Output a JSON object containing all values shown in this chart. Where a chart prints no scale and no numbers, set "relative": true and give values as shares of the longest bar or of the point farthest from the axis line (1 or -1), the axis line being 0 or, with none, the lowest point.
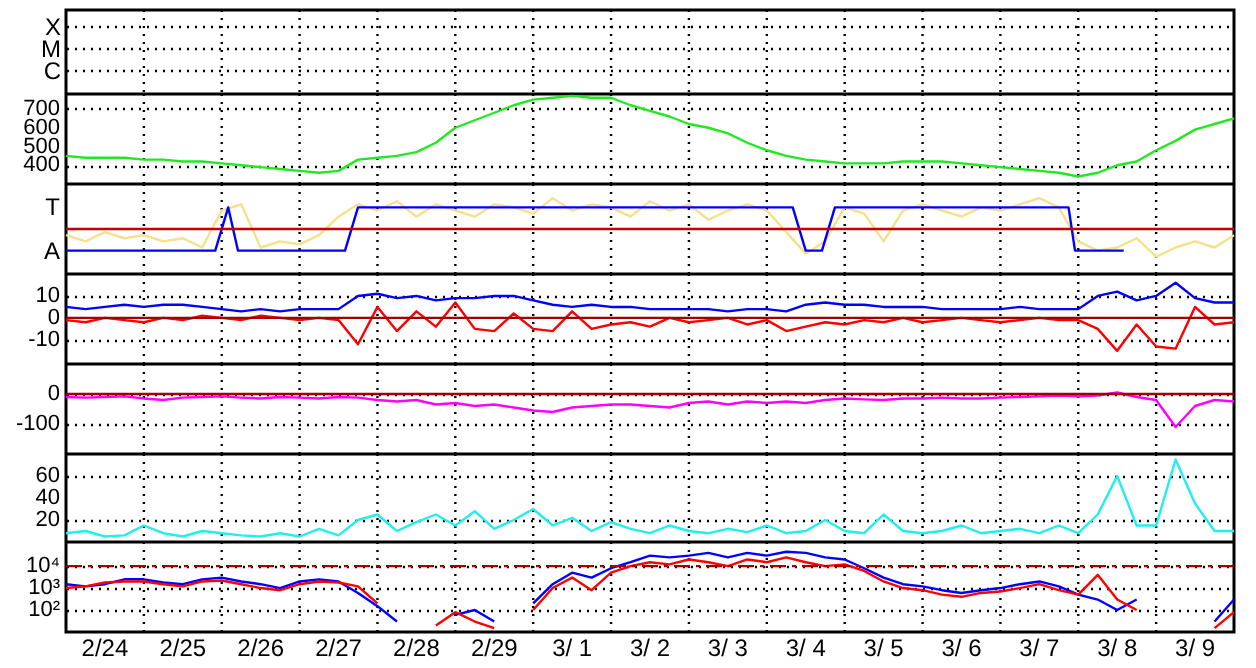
{
  "chart_data": [
    {
      "type": "other",
      "annotations": [
        "X",
        "M",
        "C"
      ]
    },
    {
      "type": "line",
      "x": [
        "--02-24T00:00",
        "--02-24T06:00",
        "--02-24T12:00",
        "--02-24T18:00",
        "--02-25T00:00",
        "--02-25T06:00",
        "--02-25T12:00",
        "--02-25T18:00",
        "--02-26T00:00",
        "--02-26T06:00",
        "--02-26T12:00",
        "--02-26T18:00",
        "--02-27T00:00",
        "--02-27T06:00",
        "--02-27T12:00",
        "--02-27T18:00",
        "--02-28T00:00",
        "--02-28T06:00",
        "--02-28T12:00",
        "--02-28T18:00",
        "--02-29T00:00",
        "--02-29T06:00",
        "--02-29T12:00",
        "--02-29T18:00",
        "--03-01T00:00",
        "--03-01T06:00",
        "--03-01T12:00",
        "--03-01T18:00",
        "--03-02T00:00",
        "--03-02T06:00",
        "--03-02T12:00",
        "--03-02T18:00",
        "--03-03T00:00",
        "--03-03T06:00",
        "--03-03T12:00",
        "--03-03T18:00",
        "--03-04T00:00",
        "--03-04T06:00",
        "--03-04T12:00",
        "--03-04T18:00",
        "--03-05T00:00",
        "--03-05T06:00",
        "--03-05T12:00",
        "--03-05T18:00",
        "--03-06T00:00",
        "--03-06T06:00",
        "--03-06T12:00",
        "--03-06T18:00",
        "--03-07T00:00",
        "--03-07T06:00",
        "--03-07T12:00",
        "--03-07T18:00",
        "--03-08T00:00",
        "--03-08T06:00",
        "--03-08T12:00",
        "--03-08T18:00",
        "--03-09T00:00",
        "--03-09T06:00",
        "--03-09T12:00",
        "--03-09T18:00",
        "--03-10T00:00"
      ],
      "series": [
        {
          "color": "#22e822",
          "values": [
            450,
            440,
            440,
            440,
            430,
            430,
            420,
            420,
            410,
            400,
            390,
            380,
            370,
            360,
            370,
            430,
            440,
            450,
            470,
            520,
            600,
            640,
            680,
            720,
            750,
            760,
            770,
            760,
            760,
            720,
            690,
            660,
            620,
            600,
            570,
            520,
            480,
            450,
            430,
            420,
            410,
            410,
            410,
            420,
            420,
            420,
            410,
            400,
            390,
            380,
            370,
            360,
            340,
            360,
            400,
            420,
            480,
            530,
            590,
            620,
            650
          ]
        }
      ],
      "xlim": [
        "--02-24",
        "--03-10"
      ],
      "xticks": [
        {
          "value": "--02-24T12:00",
          "label": "2/24"
        },
        {
          "value": "--02-25",
          "label": null
        },
        {
          "value": "--02-25T12:00",
          "label": "2/25"
        },
        {
          "value": "--02-26",
          "label": null
        },
        {
          "value": "--02-26T12:00",
          "label": "2/26"
        },
        {
          "value": "--02-27",
          "label": null
        },
        {
          "value": "--02-27T12:00",
          "label": "2/27"
        },
        {
          "value": "--02-28",
          "label": null
        },
        {
          "value": "--02-28T12:00",
          "label": "2/28"
        },
        {
          "value": "--02-29",
          "label": null
        },
        {
          "value": "--02-29T12:00",
          "label": "2/29"
        },
        {
          "value": "--03-01",
          "label": null
        },
        {
          "value": "--03-01T12:00",
          "label": "3/ 1"
        },
        {
          "value": "--03-02",
          "label": null
        },
        {
          "value": "--03-02T12:00",
          "label": "3/ 2"
        },
        {
          "value": "--03-03",
          "label": null
        },
        {
          "value": "--03-03T12:00",
          "label": "3/ 3"
        },
        {
          "value": "--03-04",
          "label": null
        },
        {
          "value": "--03-04T12:00",
          "label": "3/ 4"
        },
        {
          "value": "--03-05",
          "label": null
        },
        {
          "value": "--03-05T12:00",
          "label": "3/ 5"
        },
        {
          "value": "--03-06",
          "label": null
        },
        {
          "value": "--03-06T12:00",
          "label": "3/ 6"
        },
        {
          "value": "--03-07",
          "label": null
        },
        {
          "value": "--03-07T12:00",
          "label": "3/ 7"
        },
        {
          "value": "--03-08",
          "label": null
        },
        {
          "value": "--03-08T12:00",
          "label": "3/ 8"
        },
        {
          "value": "--03-09",
          "label": null
        },
        {
          "value": "--03-09T12:00",
          "label": "3/ 9"
        }
      ],
      "ylim": [
        300,
        780
      ],
      "yticks": [
        400,
        500,
        600,
        700
      ],
      "grid": true,
      "tick_labels": "y"
    },
    {
      "type": "line",
      "x": [
        "--02-24T00:00",
        "--02-24T06:00",
        "--02-24T12:00",
        "--02-24T18:00",
        "--02-25T00:00",
        "--02-25T06:00",
        "--02-25T12:00",
        "--02-25T18:00",
        "--02-26T00:00",
        "--02-26T06:00",
        "--02-26T12:00",
        "--02-26T18:00",
        "--02-27T00:00",
        "--02-27T06:00",
        "--02-27T12:00",
        "--02-27T18:00",
        "--02-28T00:00",
        "--02-28T06:00",
        "--02-28T12:00",
        "--02-28T18:00",
        "--02-29T00:00",
        "--02-29T06:00",
        "--02-29T12:00",
        "--02-29T18:00",
        "--03-01T00:00",
        "--03-01T06:00",
        "--03-01T12:00",
        "--03-01T18:00",
        "--03-02T00:00",
        "--03-02T06:00",
        "--03-02T12:00",
        "--03-02T18:00",
        "--03-03T00:00",
        "--03-03T06:00",
        "--03-03T12:00",
        "--03-03T18:00",
        "--03-04T00:00",
        "--03-04T06:00",
        "--03-04T12:00",
        "--03-04T18:00",
        "--03-05T00:00",
        "--03-05T06:00",
        "--03-05T12:00",
        "--03-05T18:00",
        "--03-06T00:00",
        "--03-06T06:00",
        "--03-06T12:00",
        "--03-06T18:00",
        "--03-07T00:00",
        "--03-07T06:00",
        "--03-07T12:00",
        "--03-07T18:00",
        "--03-08T00:00",
        "--03-08T06:00",
        "--03-08T12:00",
        "--03-08T18:00",
        "--03-09T00:00",
        "--03-09T06:00",
        "--03-09T12:00",
        "--03-09T18:00",
        "--03-10T00:00"
      ],
      "series": [
        {
          "color": "#f5e08c",
          "values": [
            -0.2,
            -0.4,
            -0.1,
            -0.3,
            -0.2,
            -0.4,
            -0.3,
            -0.6,
            0.6,
            0.8,
            -0.6,
            -0.4,
            -0.5,
            -0.2,
            0.4,
            0.8,
            0.6,
            0.9,
            0.4,
            0.8,
            0.6,
            0.4,
            0.8,
            0.7,
            0.5,
            1,
            0.6,
            0.8,
            0.7,
            0.4,
            0.9,
            0.6,
            0.8,
            0.3,
            0.6,
            0.8,
            0.6,
            -0.1,
            -0.8,
            -0.4,
            0.7,
            0.5,
            -0.4,
            0.6,
            0.8,
            0.6,
            0.4,
            0.7,
            0.6,
            0.8,
            1,
            0.7,
            -0.4,
            -0.7,
            -0.6,
            -0.3,
            -0.9,
            -0.6,
            -0.4,
            -0.6,
            -0.2
          ]
        },
        {
          "color": "#0000ff",
          "x": [
            "--02-24T00:00",
            "--02-25T22:00",
            "--02-26T02:00",
            "--02-26T05:00",
            "--02-27T14:00",
            "--02-27T18:00",
            "--03-04T08:00",
            "--03-04T12:00",
            "--03-04T17:00",
            "--03-04T21:00",
            "--03-07T21:00",
            "--03-07T23:00",
            "--03-08T14:00"
          ],
          "values": [
            -0.7,
            -0.7,
            0.7,
            -0.7,
            -0.7,
            0.7,
            0.7,
            -0.7,
            -0.7,
            0.7,
            0.7,
            -0.7,
            -0.7
          ]
        }
      ],
      "relative": true,
      "annotations": [
        "T",
        "A"
      ],
      "ref_lines": [
        {
          "axis": "y",
          "value": 0,
          "color": "#c00000"
        }
      ],
      "xlim": [
        "--02-24",
        "--03-10"
      ],
      "xticks": [
        {
          "value": "--02-24T12:00",
          "label": "2/24"
        },
        {
          "value": "--02-25",
          "label": null
        },
        {
          "value": "--02-25T12:00",
          "label": "2/25"
        },
        {
          "value": "--02-26",
          "label": null
        },
        {
          "value": "--02-26T12:00",
          "label": "2/26"
        },
        {
          "value": "--02-27",
          "label": null
        },
        {
          "value": "--02-27T12:00",
          "label": "2/27"
        },
        {
          "value": "--02-28",
          "label": null
        },
        {
          "value": "--02-28T12:00",
          "label": "2/28"
        },
        {
          "value": "--02-29",
          "label": null
        },
        {
          "value": "--02-29T12:00",
          "label": "2/29"
        },
        {
          "value": "--03-01",
          "label": null
        },
        {
          "value": "--03-01T12:00",
          "label": "3/ 1"
        },
        {
          "value": "--03-02",
          "label": null
        },
        {
          "value": "--03-02T12:00",
          "label": "3/ 2"
        },
        {
          "value": "--03-03",
          "label": null
        },
        {
          "value": "--03-03T12:00",
          "label": "3/ 3"
        },
        {
          "value": "--03-04",
          "label": null
        },
        {
          "value": "--03-04T12:00",
          "label": "3/ 4"
        },
        {
          "value": "--03-05",
          "label": null
        },
        {
          "value": "--03-05T12:00",
          "label": "3/ 5"
        },
        {
          "value": "--03-06",
          "label": null
        },
        {
          "value": "--03-06T12:00",
          "label": "3/ 6"
        },
        {
          "value": "--03-07",
          "label": null
        },
        {
          "value": "--03-07T12:00",
          "label": "3/ 7"
        },
        {
          "value": "--03-08",
          "label": null
        },
        {
          "value": "--03-08T12:00",
          "label": "3/ 8"
        },
        {
          "value": "--03-09",
          "label": null
        },
        {
          "value": "--03-09T12:00",
          "label": "3/ 9"
        }
      ],
      "grid": "x",
      "tick_labels": false
    },
    {
      "type": "line",
      "x": [
        "--02-24T00:00",
        "--02-24T06:00",
        "--02-24T12:00",
        "--02-24T18:00",
        "--02-25T00:00",
        "--02-25T06:00",
        "--02-25T12:00",
        "--02-25T18:00",
        "--02-26T00:00",
        "--02-26T06:00",
        "--02-26T12:00",
        "--02-26T18:00",
        "--02-27T00:00",
        "--02-27T06:00",
        "--02-27T12:00",
        "--02-27T18:00",
        "--02-28T00:00",
        "--02-28T06:00",
        "--02-28T12:00",
        "--02-28T18:00",
        "--02-29T00:00",
        "--02-29T06:00",
        "--02-29T12:00",
        "--02-29T18:00",
        "--03-01T00:00",
        "--03-01T06:00",
        "--03-01T12:00",
        "--03-01T18:00",
        "--03-02T00:00",
        "--03-02T06:00",
        "--03-02T12:00",
        "--03-02T18:00",
        "--03-03T00:00",
        "--03-03T06:00",
        "--03-03T12:00",
        "--03-03T18:00",
        "--03-04T00:00",
        "--03-04T06:00",
        "--03-04T12:00",
        "--03-04T18:00",
        "--03-05T00:00",
        "--03-05T06:00",
        "--03-05T12:00",
        "--03-05T18:00",
        "--03-06T00:00",
        "--03-06T06:00",
        "--03-06T12:00",
        "--03-06T18:00",
        "--03-07T00:00",
        "--03-07T06:00",
        "--03-07T12:00",
        "--03-07T18:00",
        "--03-08T00:00",
        "--03-08T06:00",
        "--03-08T12:00",
        "--03-08T18:00",
        "--03-09T00:00",
        "--03-09T06:00",
        "--03-09T12:00",
        "--03-09T18:00",
        "--03-10T00:00"
      ],
      "series": [
        {
          "color": "#0000ff",
          "values": [
            5,
            4,
            5,
            6,
            5,
            6,
            6,
            5,
            4,
            3,
            4,
            3,
            4,
            4,
            4,
            10,
            11,
            9,
            10,
            8,
            9,
            9,
            10,
            10,
            8,
            6,
            5,
            6,
            5,
            5,
            4,
            4,
            4,
            4,
            3,
            4,
            4,
            3,
            6,
            7,
            6,
            6,
            5,
            5,
            5,
            4,
            4,
            4,
            4,
            5,
            4,
            4,
            4,
            10,
            12,
            8,
            10,
            16,
            9,
            7,
            7
          ]
        },
        {
          "color": "#ff0000",
          "values": [
            -1,
            -2,
            0,
            -1,
            -2,
            0,
            -1,
            1,
            0,
            -1,
            1,
            0,
            -1,
            0,
            -1,
            -12,
            5,
            -6,
            3,
            -4,
            7,
            -5,
            -6,
            2,
            -5,
            -6,
            3,
            -5,
            -3,
            -2,
            -4,
            0,
            -2,
            -1,
            0,
            -3,
            -1,
            -6,
            -4,
            -2,
            -3,
            -1,
            -2,
            0,
            -2,
            -1,
            0,
            -1,
            -2,
            -1,
            0,
            -1,
            -1,
            -5,
            -15,
            -3,
            -13,
            -14,
            5,
            -3,
            -2
          ]
        }
      ],
      "ref_lines": [
        {
          "axis": "y",
          "value": 0,
          "color": "#a00000"
        }
      ],
      "xlim": [
        "--02-24",
        "--03-10"
      ],
      "xticks": [
        {
          "value": "--02-24T12:00",
          "label": "2/24"
        },
        {
          "value": "--02-25",
          "label": null
        },
        {
          "value": "--02-25T12:00",
          "label": "2/25"
        },
        {
          "value": "--02-26",
          "label": null
        },
        {
          "value": "--02-26T12:00",
          "label": "2/26"
        },
        {
          "value": "--02-27",
          "label": null
        },
        {
          "value": "--02-27T12:00",
          "label": "2/27"
        },
        {
          "value": "--02-28",
          "label": null
        },
        {
          "value": "--02-28T12:00",
          "label": "2/28"
        },
        {
          "value": "--02-29",
          "label": null
        },
        {
          "value": "--02-29T12:00",
          "label": "2/29"
        },
        {
          "value": "--03-01",
          "label": null
        },
        {
          "value": "--03-01T12:00",
          "label": "3/ 1"
        },
        {
          "value": "--03-02",
          "label": null
        },
        {
          "value": "--03-02T12:00",
          "label": "3/ 2"
        },
        {
          "value": "--03-03",
          "label": null
        },
        {
          "value": "--03-03T12:00",
          "label": "3/ 3"
        },
        {
          "value": "--03-04",
          "label": null
        },
        {
          "value": "--03-04T12:00",
          "label": "3/ 4"
        },
        {
          "value": "--03-05",
          "label": null
        },
        {
          "value": "--03-05T12:00",
          "label": "3/ 5"
        },
        {
          "value": "--03-06",
          "label": null
        },
        {
          "value": "--03-06T12:00",
          "label": "3/ 6"
        },
        {
          "value": "--03-07",
          "label": null
        },
        {
          "value": "--03-07T12:00",
          "label": "3/ 7"
        },
        {
          "value": "--03-08",
          "label": null
        },
        {
          "value": "--03-08T12:00",
          "label": "3/ 8"
        },
        {
          "value": "--03-09",
          "label": null
        },
        {
          "value": "--03-09T12:00",
          "label": "3/ 9"
        }
      ],
      "ylim": [
        -21,
        20
      ],
      "yticks": [
        -10,
        0,
        10
      ],
      "grid": true,
      "tick_labels": "y"
    },
    {
      "type": "line",
      "x": [
        "--02-24T00:00",
        "--02-24T06:00",
        "--02-24T12:00",
        "--02-24T18:00",
        "--02-25T00:00",
        "--02-25T06:00",
        "--02-25T12:00",
        "--02-25T18:00",
        "--02-26T00:00",
        "--02-26T06:00",
        "--02-26T12:00",
        "--02-26T18:00",
        "--02-27T00:00",
        "--02-27T06:00",
        "--02-27T12:00",
        "--02-27T18:00",
        "--02-28T00:00",
        "--02-28T06:00",
        "--02-28T12:00",
        "--02-28T18:00",
        "--02-29T00:00",
        "--02-29T06:00",
        "--02-29T12:00",
        "--02-29T18:00",
        "--03-01T00:00",
        "--03-01T06:00",
        "--03-01T12:00",
        "--03-01T18:00",
        "--03-02T00:00",
        "--03-02T06:00",
        "--03-02T12:00",
        "--03-02T18:00",
        "--03-03T00:00",
        "--03-03T06:00",
        "--03-03T12:00",
        "--03-03T18:00",
        "--03-04T00:00",
        "--03-04T06:00",
        "--03-04T12:00",
        "--03-04T18:00",
        "--03-05T00:00",
        "--03-05T06:00",
        "--03-05T12:00",
        "--03-05T18:00",
        "--03-06T00:00",
        "--03-06T06:00",
        "--03-06T12:00",
        "--03-06T18:00",
        "--03-07T00:00",
        "--03-07T06:00",
        "--03-07T12:00",
        "--03-07T18:00",
        "--03-08T00:00",
        "--03-08T06:00",
        "--03-08T12:00",
        "--03-08T18:00",
        "--03-09T00:00",
        "--03-09T06:00",
        "--03-09T12:00",
        "--03-09T18:00",
        "--03-10T00:00"
      ],
      "series": [
        {
          "color": "#ff00ff",
          "values": [
            -10,
            -12,
            -10,
            -8,
            -15,
            -20,
            -12,
            -10,
            -8,
            -12,
            -15,
            -10,
            -12,
            -15,
            -10,
            -12,
            -20,
            -25,
            -20,
            -35,
            -30,
            -40,
            -35,
            -45,
            -55,
            -60,
            -45,
            -40,
            -35,
            -35,
            -40,
            -45,
            -30,
            -25,
            -35,
            -25,
            -30,
            -25,
            -30,
            -20,
            -15,
            -18,
            -20,
            -15,
            -15,
            -12,
            -15,
            -15,
            -12,
            -10,
            -8,
            -5,
            -8,
            -5,
            5,
            -10,
            -20,
            -110,
            -40,
            -20,
            -25
          ]
        }
      ],
      "ref_lines": [
        {
          "axis": "y",
          "value": 0,
          "color": "#a00000"
        }
      ],
      "xlim": [
        "--02-24",
        "--03-10"
      ],
      "xticks": [
        {
          "value": "--02-24T12:00",
          "label": "2/24"
        },
        {
          "value": "--02-25",
          "label": null
        },
        {
          "value": "--02-25T12:00",
          "label": "2/25"
        },
        {
          "value": "--02-26",
          "label": null
        },
        {
          "value": "--02-26T12:00",
          "label": "2/26"
        },
        {
          "value": "--02-27",
          "label": null
        },
        {
          "value": "--02-27T12:00",
          "label": "2/27"
        },
        {
          "value": "--02-28",
          "label": null
        },
        {
          "value": "--02-28T12:00",
          "label": "2/28"
        },
        {
          "value": "--02-29",
          "label": null
        },
        {
          "value": "--02-29T12:00",
          "label": "2/29"
        },
        {
          "value": "--03-01",
          "label": null
        },
        {
          "value": "--03-01T12:00",
          "label": "3/ 1"
        },
        {
          "value": "--03-02",
          "label": null
        },
        {
          "value": "--03-02T12:00",
          "label": "3/ 2"
        },
        {
          "value": "--03-03",
          "label": null
        },
        {
          "value": "--03-03T12:00",
          "label": "3/ 3"
        },
        {
          "value": "--03-04",
          "label": null
        },
        {
          "value": "--03-04T12:00",
          "label": "3/ 4"
        },
        {
          "value": "--03-05",
          "label": null
        },
        {
          "value": "--03-05T12:00",
          "label": "3/ 5"
        },
        {
          "value": "--03-06",
          "label": null
        },
        {
          "value": "--03-06T12:00",
          "label": "3/ 6"
        },
        {
          "value": "--03-07",
          "label": null
        },
        {
          "value": "--03-07T12:00",
          "label": "3/ 7"
        },
        {
          "value": "--03-08",
          "label": null
        },
        {
          "value": "--03-08T12:00",
          "label": "3/ 8"
        },
        {
          "value": "--03-09",
          "label": null
        },
        {
          "value": "--03-09T12:00",
          "label": "3/ 9"
        }
      ],
      "ylim": [
        -200,
        100
      ],
      "yticks": [
        -100,
        0
      ],
      "grid": true,
      "tick_labels": "y"
    },
    {
      "type": "line",
      "x": [
        "--02-24T00:00",
        "--02-24T06:00",
        "--02-24T12:00",
        "--02-24T18:00",
        "--02-25T00:00",
        "--02-25T06:00",
        "--02-25T12:00",
        "--02-25T18:00",
        "--02-26T00:00",
        "--02-26T06:00",
        "--02-26T12:00",
        "--02-26T18:00",
        "--02-27T00:00",
        "--02-27T06:00",
        "--02-27T12:00",
        "--02-27T18:00",
        "--02-28T00:00",
        "--02-28T06:00",
        "--02-28T12:00",
        "--02-28T18:00",
        "--02-29T00:00",
        "--02-29T06:00",
        "--02-29T12:00",
        "--02-29T18:00",
        "--03-01T00:00",
        "--03-01T06:00",
        "--03-01T12:00",
        "--03-01T18:00",
        "--03-02T00:00",
        "--03-02T06:00",
        "--03-02T12:00",
        "--03-02T18:00",
        "--03-03T00:00",
        "--03-03T06:00",
        "--03-03T12:00",
        "--03-03T18:00",
        "--03-04T00:00",
        "--03-04T06:00",
        "--03-04T12:00",
        "--03-04T18:00",
        "--03-05T00:00",
        "--03-05T06:00",
        "--03-05T12:00",
        "--03-05T18:00",
        "--03-06T00:00",
        "--03-06T06:00",
        "--03-06T12:00",
        "--03-06T18:00",
        "--03-07T00:00",
        "--03-07T06:00",
        "--03-07T12:00",
        "--03-07T18:00",
        "--03-08T00:00",
        "--03-08T06:00",
        "--03-08T12:00",
        "--03-08T18:00",
        "--03-09T00:00",
        "--03-09T06:00",
        "--03-09T12:00",
        "--03-09T18:00",
        "--03-10T00:00"
      ],
      "series": [
        {
          "color": "#22eeee",
          "values": [
            8,
            10,
            5,
            6,
            15,
            8,
            5,
            10,
            8,
            6,
            5,
            8,
            5,
            12,
            6,
            20,
            25,
            10,
            18,
            25,
            15,
            28,
            12,
            20,
            30,
            15,
            22,
            10,
            18,
            12,
            8,
            15,
            10,
            8,
            12,
            9,
            15,
            8,
            10,
            20,
            10,
            8,
            25,
            10,
            8,
            10,
            15,
            8,
            10,
            12,
            8,
            15,
            8,
            25,
            60,
            15,
            15,
            75,
            35,
            10,
            10
          ]
        }
      ],
      "xlim": [
        "--02-24",
        "--03-10"
      ],
      "xticks": [
        {
          "value": "--02-24T12:00",
          "label": "2/24"
        },
        {
          "value": "--02-25",
          "label": null
        },
        {
          "value": "--02-25T12:00",
          "label": "2/25"
        },
        {
          "value": "--02-26",
          "label": null
        },
        {
          "value": "--02-26T12:00",
          "label": "2/26"
        },
        {
          "value": "--02-27",
          "label": null
        },
        {
          "value": "--02-27T12:00",
          "label": "2/27"
        },
        {
          "value": "--02-28",
          "label": null
        },
        {
          "value": "--02-28T12:00",
          "label": "2/28"
        },
        {
          "value": "--02-29",
          "label": null
        },
        {
          "value": "--02-29T12:00",
          "label": "2/29"
        },
        {
          "value": "--03-01",
          "label": null
        },
        {
          "value": "--03-01T12:00",
          "label": "3/ 1"
        },
        {
          "value": "--03-02",
          "label": null
        },
        {
          "value": "--03-02T12:00",
          "label": "3/ 2"
        },
        {
          "value": "--03-03",
          "label": null
        },
        {
          "value": "--03-03T12:00",
          "label": "3/ 3"
        },
        {
          "value": "--03-04",
          "label": null
        },
        {
          "value": "--03-04T12:00",
          "label": "3/ 4"
        },
        {
          "value": "--03-05",
          "label": null
        },
        {
          "value": "--03-05T12:00",
          "label": "3/ 5"
        },
        {
          "value": "--03-06",
          "label": null
        },
        {
          "value": "--03-06T12:00",
          "label": "3/ 6"
        },
        {
          "value": "--03-07",
          "label": null
        },
        {
          "value": "--03-07T12:00",
          "label": "3/ 7"
        },
        {
          "value": "--03-08",
          "label": null
        },
        {
          "value": "--03-08T12:00",
          "label": "3/ 8"
        },
        {
          "value": "--03-09",
          "label": null
        },
        {
          "value": "--03-09T12:00",
          "label": "3/ 9"
        }
      ],
      "ylim": [
        0,
        80
      ],
      "yticks": [
        20,
        40,
        60
      ],
      "grid": true,
      "tick_labels": "y"
    },
    {
      "type": "line",
      "x": [
        "--02-24T00:00",
        "--02-24T06:00",
        "--02-24T12:00",
        "--02-24T18:00",
        "--02-25T00:00",
        "--02-25T06:00",
        "--02-25T12:00",
        "--02-25T18:00",
        "--02-26T00:00",
        "--02-26T06:00",
        "--02-26T12:00",
        "--02-26T18:00",
        "--02-27T00:00",
        "--02-27T06:00",
        "--02-27T12:00",
        "--02-27T18:00",
        "--02-28T00:00",
        "--02-28T06:00",
        "--02-28T12:00",
        "--02-28T18:00",
        "--02-29T00:00",
        "--02-29T06:00",
        "--02-29T12:00",
        "--02-29T18:00",
        "--03-01T00:00",
        "--03-01T06:00",
        "--03-01T12:00",
        "--03-01T18:00",
        "--03-02T00:00",
        "--03-02T06:00",
        "--03-02T12:00",
        "--03-02T18:00",
        "--03-03T00:00",
        "--03-03T06:00",
        "--03-03T12:00",
        "--03-03T18:00",
        "--03-04T00:00",
        "--03-04T06:00",
        "--03-04T12:00",
        "--03-04T18:00",
        "--03-05T00:00",
        "--03-05T06:00",
        "--03-05T12:00",
        "--03-05T18:00",
        "--03-06T00:00",
        "--03-06T06:00",
        "--03-06T12:00",
        "--03-06T18:00",
        "--03-07T00:00",
        "--03-07T06:00",
        "--03-07T12:00",
        "--03-07T18:00",
        "--03-08T00:00",
        "--03-08T06:00",
        "--03-08T12:00",
        "--03-08T18:00",
        "--03-09T00:00",
        "--03-09T06:00",
        "--03-09T12:00",
        "--03-09T18:00",
        "--03-10T00:00"
      ],
      "series": [
        {
          "color": "#0000ff",
          "values": [
            1500,
            1200,
            1500,
            2500,
            2500,
            1800,
            1500,
            2500,
            3000,
            2000,
            1500,
            1000,
            2000,
            2500,
            2000,
            600,
            150,
            30,
            null,
            null,
            60,
            100,
            30,
            null,
            200,
            1500,
            5000,
            3000,
            8000,
            15000,
            30000,
            25000,
            30000,
            40000,
            25000,
            40000,
            30000,
            45000,
            40000,
            25000,
            20000,
            8000,
            3000,
            1500,
            1200,
            800,
            600,
            800,
            1000,
            1500,
            2000,
            1200,
            500,
            300,
            100,
            300,
            null,
            null,
            null,
            30,
            300
          ]
        },
        {
          "color": "#ff0000",
          "values": [
            1000,
            1200,
            1800,
            2000,
            2000,
            1500,
            1200,
            2000,
            2200,
            1500,
            1000,
            800,
            1500,
            2000,
            1800,
            1200,
            200,
            null,
            null,
            20,
            80,
            30,
            15,
            null,
            100,
            1000,
            3000,
            800,
            5000,
            10000,
            15000,
            12000,
            20000,
            15000,
            10000,
            20000,
            15000,
            25000,
            15000,
            10000,
            12000,
            6000,
            2000,
            1000,
            800,
            500,
            400,
            600,
            700,
            1000,
            1500,
            800,
            500,
            4000,
            300,
            100,
            null,
            null,
            null,
            15,
            80
          ]
        }
      ],
      "ref_lines": [
        {
          "axis": "y",
          "value": 10000,
          "color": "#a00000",
          "line_style": "dashed"
        }
      ],
      "xlim": [
        "--02-24",
        "--03-10"
      ],
      "xticks": [
        {
          "value": "--02-24T12:00",
          "label": "2/24"
        },
        {
          "value": "--02-25",
          "label": null
        },
        {
          "value": "--02-25T12:00",
          "label": "2/25"
        },
        {
          "value": "--02-26",
          "label": null
        },
        {
          "value": "--02-26T12:00",
          "label": "2/26"
        },
        {
          "value": "--02-27",
          "label": null
        },
        {
          "value": "--02-27T12:00",
          "label": "2/27"
        },
        {
          "value": "--02-28",
          "label": null
        },
        {
          "value": "--02-28T12:00",
          "label": "2/28"
        },
        {
          "value": "--02-29",
          "label": null
        },
        {
          "value": "--02-29T12:00",
          "label": "2/29"
        },
        {
          "value": "--03-01",
          "label": null
        },
        {
          "value": "--03-01T12:00",
          "label": "3/ 1"
        },
        {
          "value": "--03-02",
          "label": null
        },
        {
          "value": "--03-02T12:00",
          "label": "3/ 2"
        },
        {
          "value": "--03-03",
          "label": null
        },
        {
          "value": "--03-03T12:00",
          "label": "3/ 3"
        },
        {
          "value": "--03-04",
          "label": null
        },
        {
          "value": "--03-04T12:00",
          "label": "3/ 4"
        },
        {
          "value": "--03-05",
          "label": null
        },
        {
          "value": "--03-05T12:00",
          "label": "3/ 5"
        },
        {
          "value": "--03-06",
          "label": null
        },
        {
          "value": "--03-06T12:00",
          "label": "3/ 6"
        },
        {
          "value": "--03-07",
          "label": null
        },
        {
          "value": "--03-07T12:00",
          "label": "3/ 7"
        },
        {
          "value": "--03-08",
          "label": null
        },
        {
          "value": "--03-08T12:00",
          "label": "3/ 8"
        },
        {
          "value": "--03-09",
          "label": null
        },
        {
          "value": "--03-09T12:00",
          "label": "3/ 9"
        }
      ],
      "ylim": [
        10,
        125000
      ],
      "yticks": [
        {
          "value": 100,
          "label": "10²"
        },
        {
          "value": 1000,
          "label": "10³"
        },
        {
          "value": 10000,
          "label": "10⁴"
        }
      ],
      "log": true,
      "grid": true
    }
  ]
}
